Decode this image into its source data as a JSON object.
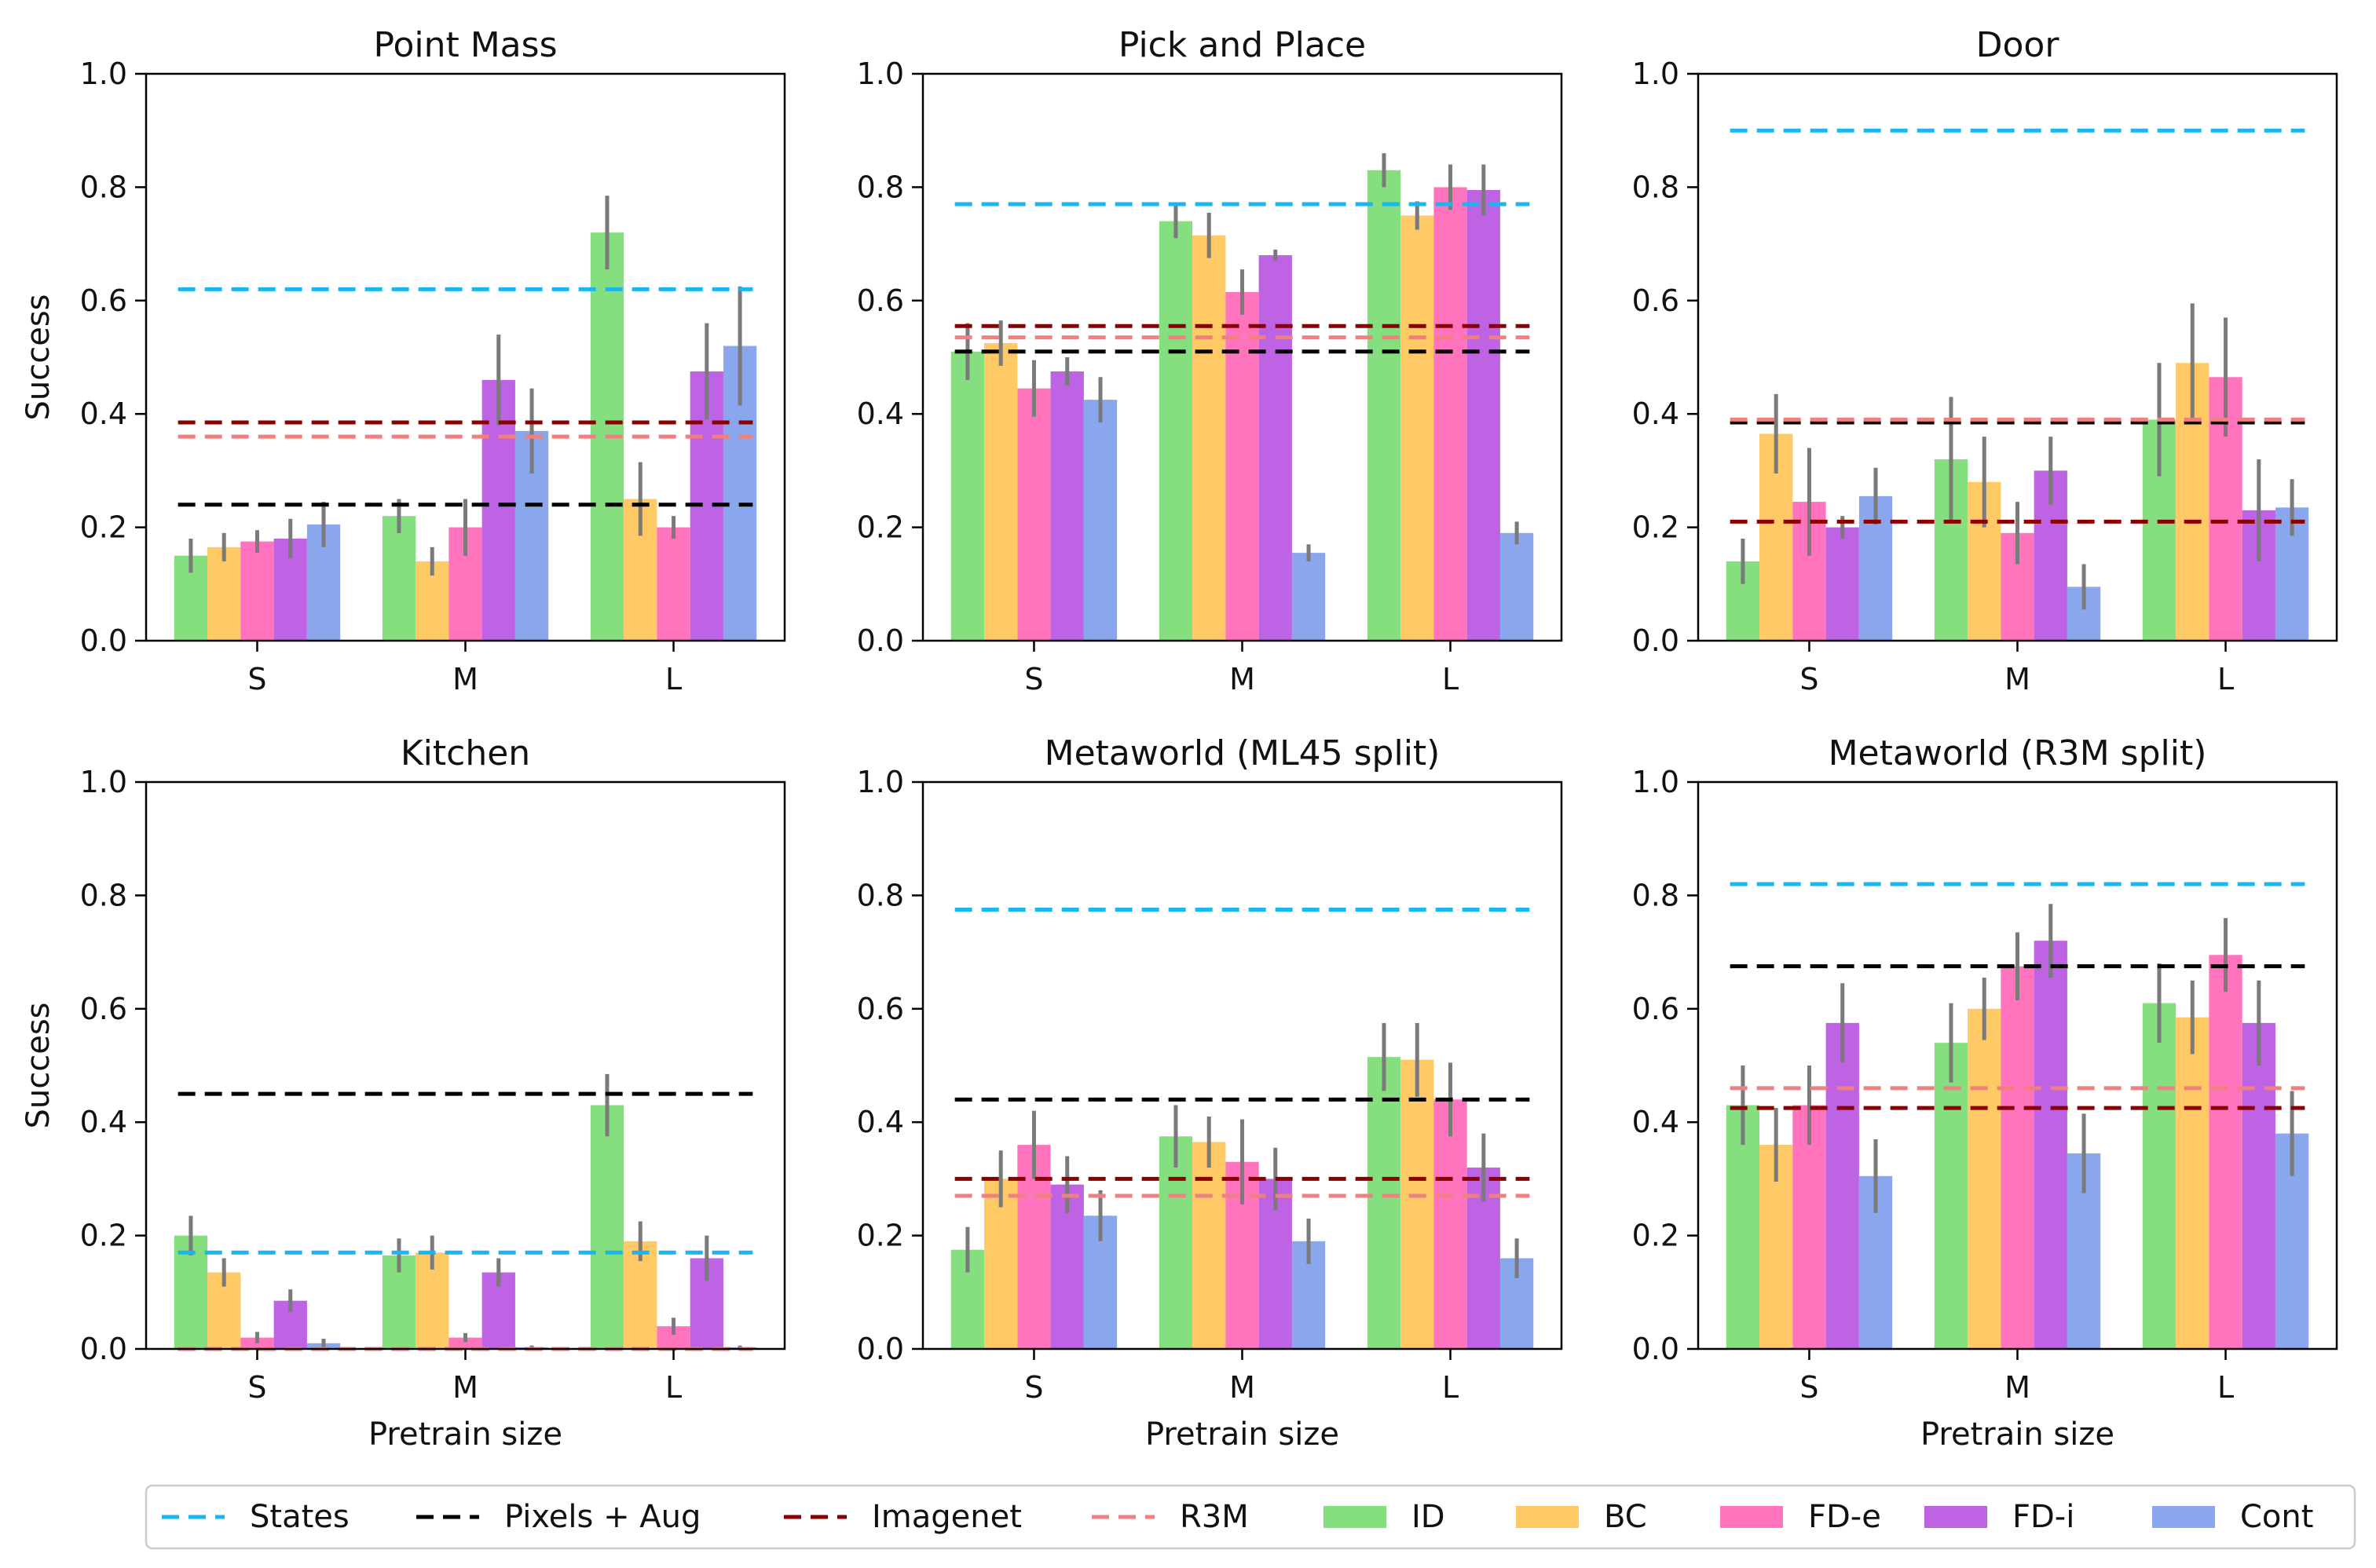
{
  "chart_data": [
    {
      "type": "bar",
      "title": "Point Mass",
      "xlabel": "",
      "ylabel": "Success",
      "categories": [
        "S",
        "M",
        "L"
      ],
      "ylim": [
        0,
        1.0
      ],
      "yticks": [
        "0.0",
        "0.2",
        "0.4",
        "0.6",
        "0.8",
        "1.0"
      ],
      "series": [
        {
          "name": "ID",
          "values": [
            0.15,
            0.22,
            0.72
          ],
          "errors": [
            0.03,
            0.03,
            0.065
          ]
        },
        {
          "name": "BC",
          "values": [
            0.165,
            0.14,
            0.25
          ],
          "errors": [
            0.025,
            0.025,
            0.065
          ]
        },
        {
          "name": "FD-e",
          "values": [
            0.175,
            0.2,
            0.2
          ],
          "errors": [
            0.02,
            0.05,
            0.02
          ]
        },
        {
          "name": "FD-i",
          "values": [
            0.18,
            0.46,
            0.475
          ],
          "errors": [
            0.035,
            0.08,
            0.085
          ]
        },
        {
          "name": "Cont",
          "values": [
            0.205,
            0.37,
            0.52
          ],
          "errors": [
            0.04,
            0.075,
            0.105
          ]
        }
      ],
      "hlines": [
        {
          "name": "States",
          "value": 0.62
        },
        {
          "name": "Pixels + Aug",
          "value": 0.24
        },
        {
          "name": "Imagenet",
          "value": 0.385
        },
        {
          "name": "R3M",
          "value": 0.36
        }
      ]
    },
    {
      "type": "bar",
      "title": "Pick and Place",
      "xlabel": "",
      "ylabel": "",
      "categories": [
        "S",
        "M",
        "L"
      ],
      "ylim": [
        0,
        1.0
      ],
      "yticks": [
        "0.0",
        "0.2",
        "0.4",
        "0.6",
        "0.8",
        "1.0"
      ],
      "series": [
        {
          "name": "ID",
          "values": [
            0.51,
            0.74,
            0.83
          ],
          "errors": [
            0.05,
            0.03,
            0.03
          ]
        },
        {
          "name": "BC",
          "values": [
            0.525,
            0.715,
            0.75
          ],
          "errors": [
            0.04,
            0.04,
            0.025
          ]
        },
        {
          "name": "FD-e",
          "values": [
            0.445,
            0.615,
            0.8
          ],
          "errors": [
            0.05,
            0.04,
            0.04
          ]
        },
        {
          "name": "FD-i",
          "values": [
            0.475,
            0.68,
            0.795
          ],
          "errors": [
            0.025,
            0.01,
            0.045
          ]
        },
        {
          "name": "Cont",
          "values": [
            0.425,
            0.155,
            0.19
          ],
          "errors": [
            0.04,
            0.015,
            0.02
          ]
        }
      ],
      "hlines": [
        {
          "name": "States",
          "value": 0.77
        },
        {
          "name": "Pixels + Aug",
          "value": 0.51
        },
        {
          "name": "Imagenet",
          "value": 0.555
        },
        {
          "name": "R3M",
          "value": 0.535
        }
      ]
    },
    {
      "type": "bar",
      "title": "Door",
      "xlabel": "",
      "ylabel": "",
      "categories": [
        "S",
        "M",
        "L"
      ],
      "ylim": [
        0,
        1.0
      ],
      "yticks": [
        "0.0",
        "0.2",
        "0.4",
        "0.6",
        "0.8",
        "1.0"
      ],
      "series": [
        {
          "name": "ID",
          "values": [
            0.14,
            0.32,
            0.39
          ],
          "errors": [
            0.04,
            0.11,
            0.1
          ]
        },
        {
          "name": "BC",
          "values": [
            0.365,
            0.28,
            0.49
          ],
          "errors": [
            0.07,
            0.08,
            0.105
          ]
        },
        {
          "name": "FD-e",
          "values": [
            0.245,
            0.19,
            0.465
          ],
          "errors": [
            0.095,
            0.055,
            0.105
          ]
        },
        {
          "name": "FD-i",
          "values": [
            0.2,
            0.3,
            0.23
          ],
          "errors": [
            0.02,
            0.06,
            0.09
          ]
        },
        {
          "name": "Cont",
          "values": [
            0.255,
            0.095,
            0.235
          ],
          "errors": [
            0.05,
            0.04,
            0.05
          ]
        }
      ],
      "hlines": [
        {
          "name": "States",
          "value": 0.9
        },
        {
          "name": "Pixels + Aug",
          "value": 0.385
        },
        {
          "name": "Imagenet",
          "value": 0.21
        },
        {
          "name": "R3M",
          "value": 0.39
        }
      ]
    },
    {
      "type": "bar",
      "title": "Kitchen",
      "xlabel": "Pretrain size",
      "ylabel": "Success",
      "categories": [
        "S",
        "M",
        "L"
      ],
      "ylim": [
        0,
        1.0
      ],
      "yticks": [
        "0.0",
        "0.2",
        "0.4",
        "0.6",
        "0.8",
        "1.0"
      ],
      "series": [
        {
          "name": "ID",
          "values": [
            0.2,
            0.165,
            0.43
          ],
          "errors": [
            0.035,
            0.03,
            0.055
          ]
        },
        {
          "name": "BC",
          "values": [
            0.135,
            0.17,
            0.19
          ],
          "errors": [
            0.025,
            0.03,
            0.035
          ]
        },
        {
          "name": "FD-e",
          "values": [
            0.02,
            0.02,
            0.04
          ],
          "errors": [
            0.01,
            0.008,
            0.015
          ]
        },
        {
          "name": "FD-i",
          "values": [
            0.085,
            0.135,
            0.16
          ],
          "errors": [
            0.02,
            0.025,
            0.04
          ]
        },
        {
          "name": "Cont",
          "values": [
            0.01,
            0.003,
            0.003
          ],
          "errors": [
            0.008,
            0.003,
            0.003
          ]
        }
      ],
      "hlines": [
        {
          "name": "States",
          "value": 0.17
        },
        {
          "name": "Pixels + Aug",
          "value": 0.45
        },
        {
          "name": "Imagenet",
          "value": 0.0
        },
        {
          "name": "R3M",
          "value": 0.0
        }
      ]
    },
    {
      "type": "bar",
      "title": "Metaworld (ML45 split)",
      "xlabel": "Pretrain size",
      "ylabel": "",
      "categories": [
        "S",
        "M",
        "L"
      ],
      "ylim": [
        0,
        1.0
      ],
      "yticks": [
        "0.0",
        "0.2",
        "0.4",
        "0.6",
        "0.8",
        "1.0"
      ],
      "series": [
        {
          "name": "ID",
          "values": [
            0.175,
            0.375,
            0.515
          ],
          "errors": [
            0.04,
            0.055,
            0.06
          ]
        },
        {
          "name": "BC",
          "values": [
            0.3,
            0.365,
            0.51
          ],
          "errors": [
            0.05,
            0.045,
            0.065
          ]
        },
        {
          "name": "FD-e",
          "values": [
            0.36,
            0.33,
            0.44
          ],
          "errors": [
            0.06,
            0.075,
            0.065
          ]
        },
        {
          "name": "FD-i",
          "values": [
            0.29,
            0.3,
            0.32
          ],
          "errors": [
            0.05,
            0.055,
            0.06
          ]
        },
        {
          "name": "Cont",
          "values": [
            0.235,
            0.19,
            0.16
          ],
          "errors": [
            0.045,
            0.04,
            0.035
          ]
        }
      ],
      "hlines": [
        {
          "name": "States",
          "value": 0.775
        },
        {
          "name": "Pixels + Aug",
          "value": 0.44
        },
        {
          "name": "Imagenet",
          "value": 0.3
        },
        {
          "name": "R3M",
          "value": 0.27
        }
      ]
    },
    {
      "type": "bar",
      "title": "Metaworld (R3M split)",
      "xlabel": "Pretrain size",
      "ylabel": "",
      "categories": [
        "S",
        "M",
        "L"
      ],
      "ylim": [
        0,
        1.0
      ],
      "yticks": [
        "0.0",
        "0.2",
        "0.4",
        "0.6",
        "0.8",
        "1.0"
      ],
      "series": [
        {
          "name": "ID",
          "values": [
            0.43,
            0.54,
            0.61
          ],
          "errors": [
            0.07,
            0.07,
            0.07
          ]
        },
        {
          "name": "BC",
          "values": [
            0.36,
            0.6,
            0.585
          ],
          "errors": [
            0.065,
            0.055,
            0.065
          ]
        },
        {
          "name": "FD-e",
          "values": [
            0.43,
            0.675,
            0.695
          ],
          "errors": [
            0.07,
            0.06,
            0.065
          ]
        },
        {
          "name": "FD-i",
          "values": [
            0.575,
            0.72,
            0.575
          ],
          "errors": [
            0.07,
            0.065,
            0.075
          ]
        },
        {
          "name": "Cont",
          "values": [
            0.305,
            0.345,
            0.38
          ],
          "errors": [
            0.065,
            0.07,
            0.075
          ]
        }
      ],
      "hlines": [
        {
          "name": "States",
          "value": 0.82
        },
        {
          "name": "Pixels + Aug",
          "value": 0.675
        },
        {
          "name": "Imagenet",
          "value": 0.425
        },
        {
          "name": "R3M",
          "value": 0.46
        }
      ]
    }
  ],
  "legend": {
    "placement": "bottom",
    "entries": [
      {
        "name": "States",
        "kind": "line",
        "color": "#1ab6ef"
      },
      {
        "name": "Pixels + Aug",
        "kind": "line",
        "color": "#000000"
      },
      {
        "name": "Imagenet",
        "kind": "line",
        "color": "#8b0000"
      },
      {
        "name": "R3M",
        "kind": "line",
        "color": "#f08080"
      },
      {
        "name": "ID",
        "kind": "bar",
        "color": "#86df7f"
      },
      {
        "name": "BC",
        "kind": "bar",
        "color": "#ffc965"
      },
      {
        "name": "FD-e",
        "kind": "bar",
        "color": "#ff74bd"
      },
      {
        "name": "FD-i",
        "kind": "bar",
        "color": "#bd63e3"
      },
      {
        "name": "Cont",
        "kind": "bar",
        "color": "#8aa6ec"
      }
    ]
  },
  "colors": {
    "ID": "#86df7f",
    "BC": "#ffc965",
    "FD-e": "#ff74bd",
    "FD-i": "#bd63e3",
    "Cont": "#8aa6ec",
    "States": "#1ab6ef",
    "Pixels + Aug": "#000000",
    "Imagenet": "#8b0000",
    "R3M": "#f08080",
    "errorbar": "#7a7a7a"
  }
}
